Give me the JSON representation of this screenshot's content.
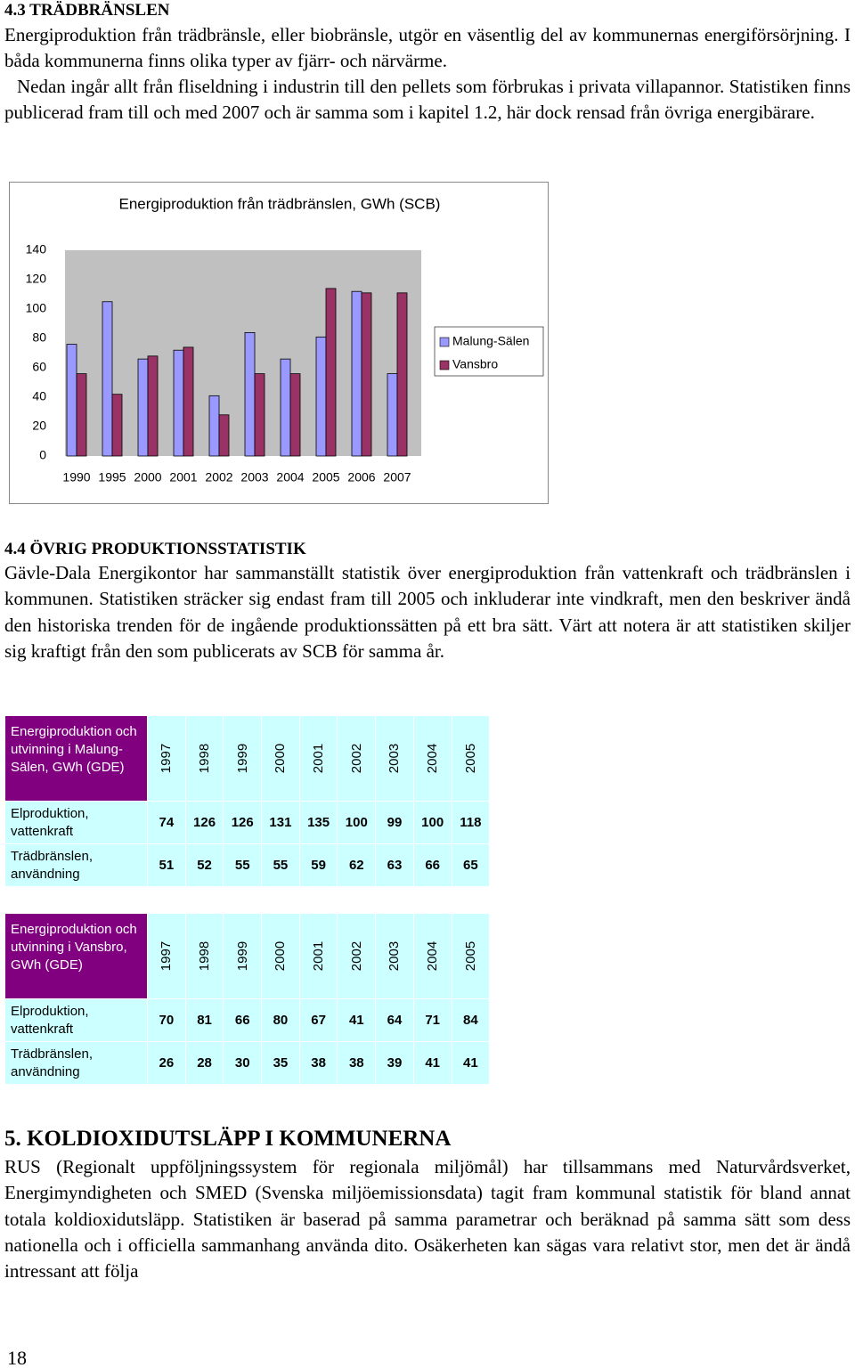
{
  "sections": [
    {
      "heading": "4.3 TRÄDBRÄNSLEN",
      "paragraphs": [
        "Energiproduktion från trädbränsle, eller biobränsle, utgör en väsentlig del av kommunernas energiförsörjning. I båda kommunerna finns olika typer av fjärr- och närvärme.",
        "Nedan ingår allt från fliseldning i industrin till den pellets som förbrukas i privata villapannor. Statistiken finns publicerad fram till och med 2007 och är samma som i kapitel 1.2, här dock rensad från övriga energibärare."
      ]
    },
    {
      "heading": "4.4 ÖVRIG PRODUKTIONSSTATISTIK",
      "paragraphs": [
        "Gävle-Dala Energikontor har sammanställt statistik över energiproduktion från vattenkraft och trädbränslen i kommunen. Statistiken sträcker sig endast fram till 2005 och inkluderar inte vindkraft, men den beskriver ändå den historiska trenden för de ingående produktionssätten på ett bra sätt. Värt att notera är att statistiken skiljer sig kraftigt från den som publicerats av SCB för samma år."
      ]
    },
    {
      "heading": "5. KOLDIOXIDUTSLÄPP I KOMMUNERNA",
      "paragraphs": [
        "RUS (Regionalt uppföljningssystem för regionala miljömål) har tillsammans med Naturvårdsverket, Energimyndigheten och SMED (Svenska miljöemissionsdata) tagit fram kommunal statistik för bland annat totala koldioxidutsläpp. Statistiken är baserad på samma parametrar och beräknad på samma sätt som dess nationella och i officiella sammanhang använda dito. Osäkerheten kan sägas vara relativt stor, men det är ändå intressant att följa"
      ]
    }
  ],
  "chart_data": {
    "type": "bar",
    "title": "Energiproduktion från trädbränslen, GWh (SCB)",
    "categories": [
      "1990",
      "1995",
      "2000",
      "2001",
      "2002",
      "2003",
      "2004",
      "2005",
      "2006",
      "2007"
    ],
    "series": [
      {
        "name": "Malung-Sälen",
        "color": "#9999ff",
        "values": [
          76,
          105,
          66,
          72,
          41,
          84,
          66,
          81,
          112,
          56
        ]
      },
      {
        "name": "Vansbro",
        "color": "#993366",
        "values": [
          56,
          42,
          68,
          74,
          28,
          56,
          56,
          114,
          111,
          111
        ]
      }
    ],
    "ylim": [
      0,
      140
    ],
    "yticks": [
      0,
      20,
      40,
      60,
      80,
      100,
      120,
      140
    ],
    "grid": false,
    "legend": "right"
  },
  "tables": [
    {
      "header": [
        "Energiproduktion och utvinning i Malung-Sälen, GWh (GDE)",
        "1997",
        "1998",
        "1999",
        "2000",
        "2001",
        "2002",
        "2003",
        "2004",
        "2005"
      ],
      "rows": [
        [
          "Elproduktion, vattenkraft",
          74,
          126,
          126,
          131,
          135,
          100,
          99,
          100,
          118
        ],
        [
          "Trädbränslen, användning",
          51,
          52,
          55,
          55,
          59,
          62,
          63,
          66,
          65
        ]
      ]
    },
    {
      "header": [
        "Energiproduktion och utvinning i Vansbro, GWh (GDE)",
        "1997",
        "1998",
        "1999",
        "2000",
        "2001",
        "2002",
        "2003",
        "2004",
        "2005"
      ],
      "rows": [
        [
          "Elproduktion, vattenkraft",
          70,
          81,
          66,
          80,
          67,
          41,
          64,
          71,
          84
        ],
        [
          "Trädbränslen, användning",
          26,
          28,
          30,
          35,
          38,
          38,
          39,
          41,
          41
        ]
      ]
    }
  ],
  "page_number": "18"
}
